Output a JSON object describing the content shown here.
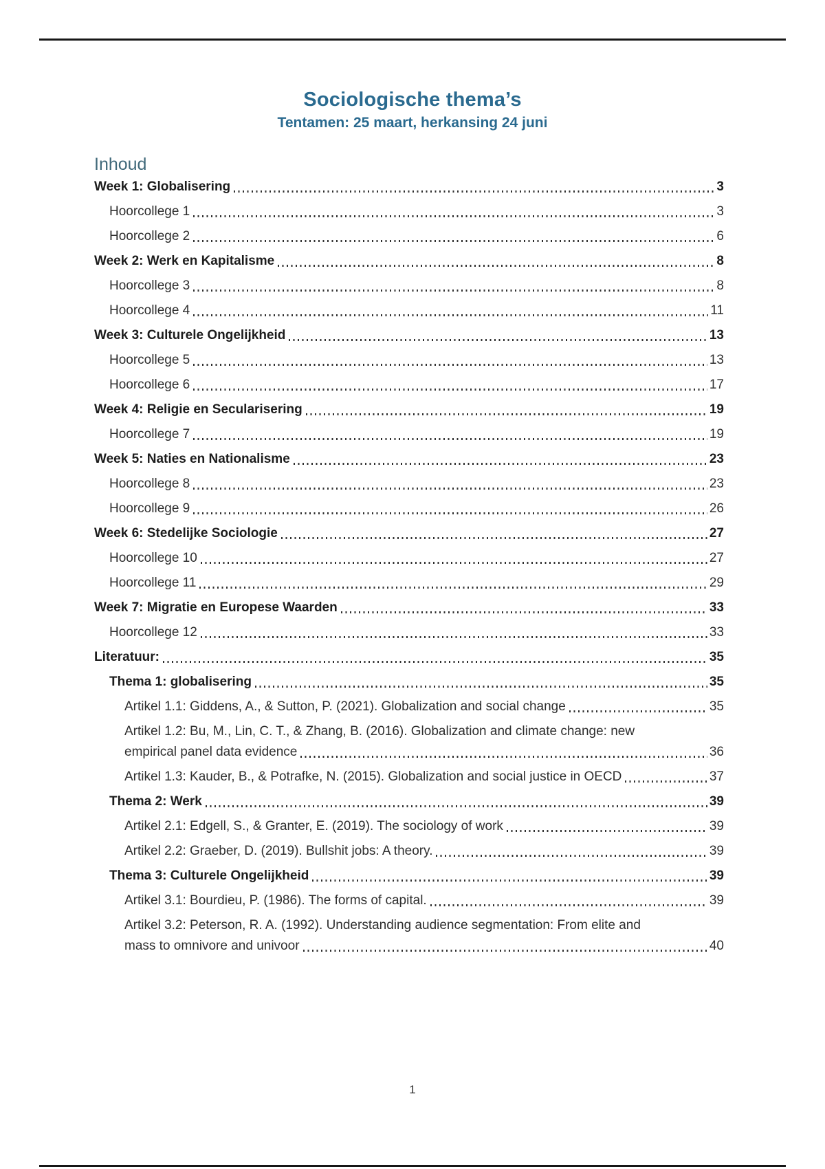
{
  "header": {
    "title": "Sociologische thema’s",
    "subtitle": "Tentamen: 25 maart, herkansing 24 juni"
  },
  "toc": {
    "heading": "Inhoud",
    "entries": [
      {
        "label": "Week 1: Globalisering",
        "page": "3",
        "level": "week"
      },
      {
        "label": "Hoorcollege 1",
        "page": "3",
        "level": "hc"
      },
      {
        "label": "Hoorcollege 2",
        "page": "6",
        "level": "hc"
      },
      {
        "label": "Week 2: Werk en Kapitalisme",
        "page": "8",
        "level": "week"
      },
      {
        "label": "Hoorcollege 3",
        "page": "8",
        "level": "hc"
      },
      {
        "label": "Hoorcollege 4",
        "page": "11",
        "level": "hc"
      },
      {
        "label": "Week 3: Culturele Ongelijkheid",
        "page": "13",
        "level": "week"
      },
      {
        "label": "Hoorcollege 5",
        "page": "13",
        "level": "hc"
      },
      {
        "label": "Hoorcollege 6",
        "page": "17",
        "level": "hc"
      },
      {
        "label": "Week 4: Religie en Secularisering",
        "page": "19",
        "level": "week"
      },
      {
        "label": "Hoorcollege 7",
        "page": "19",
        "level": "hc"
      },
      {
        "label": "Week 5: Naties en Nationalisme",
        "page": "23",
        "level": "week"
      },
      {
        "label": "Hoorcollege 8",
        "page": "23",
        "level": "hc"
      },
      {
        "label": "Hoorcollege 9",
        "page": "26",
        "level": "hc"
      },
      {
        "label": "Week 6: Stedelijke Sociologie",
        "page": "27",
        "level": "week"
      },
      {
        "label": "Hoorcollege 10",
        "page": "27",
        "level": "hc"
      },
      {
        "label": "Hoorcollege 11",
        "page": "29",
        "level": "hc"
      },
      {
        "label": "Week 7: Migratie en Europese Waarden",
        "page": "33",
        "level": "week"
      },
      {
        "label": "Hoorcollege 12",
        "page": "33",
        "level": "hc"
      },
      {
        "label": "Literatuur:",
        "page": "35",
        "level": "week"
      },
      {
        "label": "Thema 1: globalisering",
        "page": "35",
        "level": "thema"
      },
      {
        "label": "Artikel 1.1: Giddens, A., & Sutton, P. (2021). Globalization and social change",
        "page": "35",
        "level": "artikel"
      },
      {
        "label": "Artikel 1.2: Bu, M., Lin, C. T., & Zhang, B. (2016). Globalization and climate change: new",
        "label2": "empirical panel data evidence",
        "page": "36",
        "level": "artikel"
      },
      {
        "label": "Artikel 1.3: Kauder, B., & Potrafke, N. (2015). Globalization and social justice in OECD",
        "page": "37",
        "level": "artikel"
      },
      {
        "label": "Thema 2: Werk",
        "page": "39",
        "level": "thema"
      },
      {
        "label": "Artikel 2.1: Edgell, S., & Granter, E. (2019). The sociology of work",
        "page": "39",
        "level": "artikel"
      },
      {
        "label": "Artikel 2.2: Graeber, D. (2019). Bullshit jobs: A theory.",
        "page": "39",
        "level": "artikel"
      },
      {
        "label": "Thema 3: Culturele Ongelijkheid",
        "page": "39",
        "level": "thema"
      },
      {
        "label": "Artikel 3.1: Bourdieu, P. (1986). The forms of capital.",
        "page": "39",
        "level": "artikel"
      },
      {
        "label": "Artikel 3.2: Peterson, R. A. (1992). Understanding audience segmentation: From elite and",
        "label2": "mass to omnivore and univoor",
        "page": "40",
        "level": "artikel"
      }
    ]
  },
  "footer": {
    "page_number": "1"
  },
  "colors": {
    "title_blue": "#2a6a8f",
    "heading_teal": "#40697a",
    "text": "#262626",
    "rule": "#161616"
  }
}
